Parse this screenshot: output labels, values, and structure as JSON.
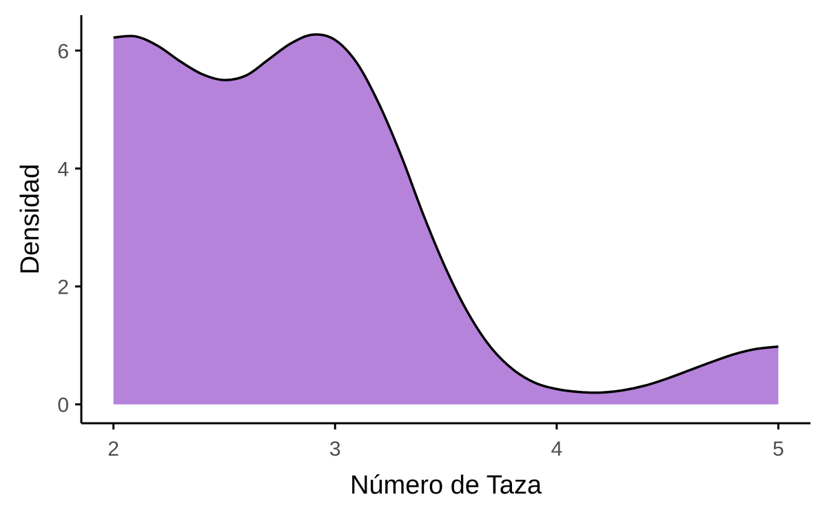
{
  "chart_data": {
    "type": "area",
    "title": "",
    "xlabel": "Número de Taza",
    "ylabel": "Densidad",
    "xlim": [
      1.855,
      5.145
    ],
    "ylim": [
      -0.32,
      6.6
    ],
    "x_ticks": [
      2,
      3,
      4,
      5
    ],
    "y_ticks": [
      0,
      2,
      4,
      6
    ],
    "grid": false,
    "legend": "none",
    "fill_color": "#b683db",
    "line_color": "#000000",
    "series": [
      {
        "x": [
          2.0,
          2.1,
          2.2,
          2.3,
          2.4,
          2.5,
          2.6,
          2.7,
          2.8,
          2.9,
          3.0,
          3.1,
          3.2,
          3.3,
          3.4,
          3.5,
          3.6,
          3.7,
          3.8,
          3.9,
          4.0,
          4.1,
          4.2,
          4.3,
          4.4,
          4.5,
          4.6,
          4.7,
          4.8,
          4.9,
          5.0
        ],
        "y": [
          6.22,
          6.24,
          6.08,
          5.82,
          5.6,
          5.5,
          5.58,
          5.85,
          6.12,
          6.27,
          6.18,
          5.78,
          5.08,
          4.2,
          3.2,
          2.3,
          1.55,
          0.98,
          0.6,
          0.37,
          0.26,
          0.21,
          0.2,
          0.24,
          0.32,
          0.44,
          0.58,
          0.72,
          0.85,
          0.94,
          0.98
        ]
      }
    ]
  }
}
